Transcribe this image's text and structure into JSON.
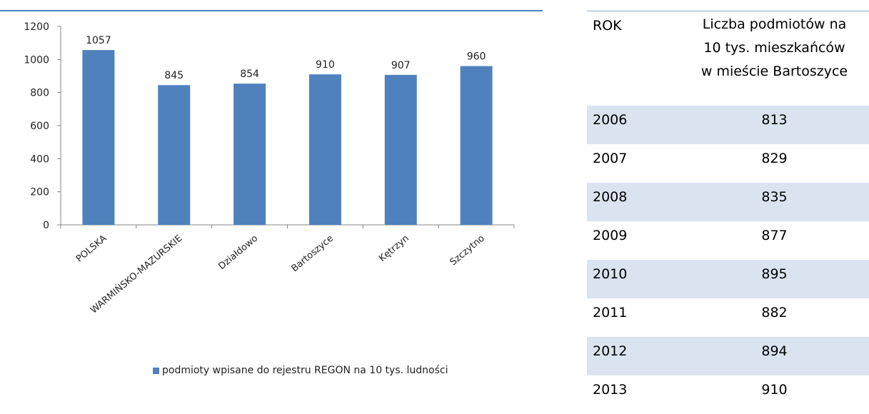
{
  "colors": {
    "bar": "#4f81bd",
    "axis": "#868686",
    "row_shade": "#dbe3f1"
  },
  "chart_data": {
    "type": "bar",
    "categories": [
      "POLSKA",
      "WARMIŃSKO-MAZURSKIE",
      "Działdowo",
      "Bartoszyce",
      "Kętrzyn",
      "Szczytno"
    ],
    "series": [
      {
        "name": "podmioty wpisane do rejestru REGON na 10 tys. ludności",
        "values": [
          1057,
          845,
          854,
          910,
          907,
          960
        ]
      }
    ],
    "ylim": [
      0,
      1200
    ],
    "yticks": [
      0,
      200,
      400,
      600,
      800,
      1000,
      1200
    ],
    "grid": false,
    "legend": "bottom"
  },
  "table": {
    "header_year": "ROK",
    "header_count_lines": [
      "Liczba podmiotów na",
      "10 tys. mieszkańców",
      "w mieście Bartoszyce"
    ],
    "rows": [
      {
        "year": "2006",
        "value": "813"
      },
      {
        "year": "2007",
        "value": "829"
      },
      {
        "year": "2008",
        "value": "835"
      },
      {
        "year": "2009",
        "value": "877"
      },
      {
        "year": "2010",
        "value": "895"
      },
      {
        "year": "2011",
        "value": "882"
      },
      {
        "year": "2012",
        "value": "894"
      },
      {
        "year": "2013",
        "value": "910"
      }
    ]
  }
}
